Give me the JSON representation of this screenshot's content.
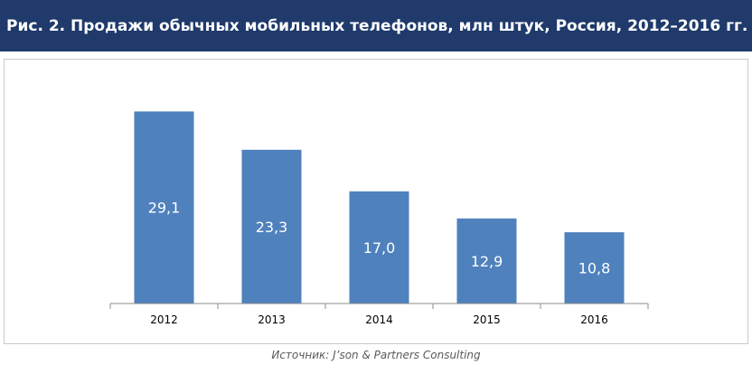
{
  "title": "Рис. 2. Продажи обычных мобильных телефонов, млн штук, Россия, 2012–2016 гг.",
  "source": "Источник: J’son & Partners Consulting",
  "colors": {
    "title_bg": "#1f3a6b",
    "bar": "#4f81bd",
    "bar_label": "#ffffff"
  },
  "chart_data": {
    "type": "bar",
    "categories": [
      "2012",
      "2013",
      "2014",
      "2015",
      "2016"
    ],
    "values": [
      29.1,
      23.3,
      17.0,
      12.9,
      10.8
    ],
    "value_labels": [
      "29,1",
      "23,3",
      "17,0",
      "12,9",
      "10,8"
    ],
    "ylim": [
      0,
      30.8
    ],
    "grid": false,
    "legend": "none"
  }
}
